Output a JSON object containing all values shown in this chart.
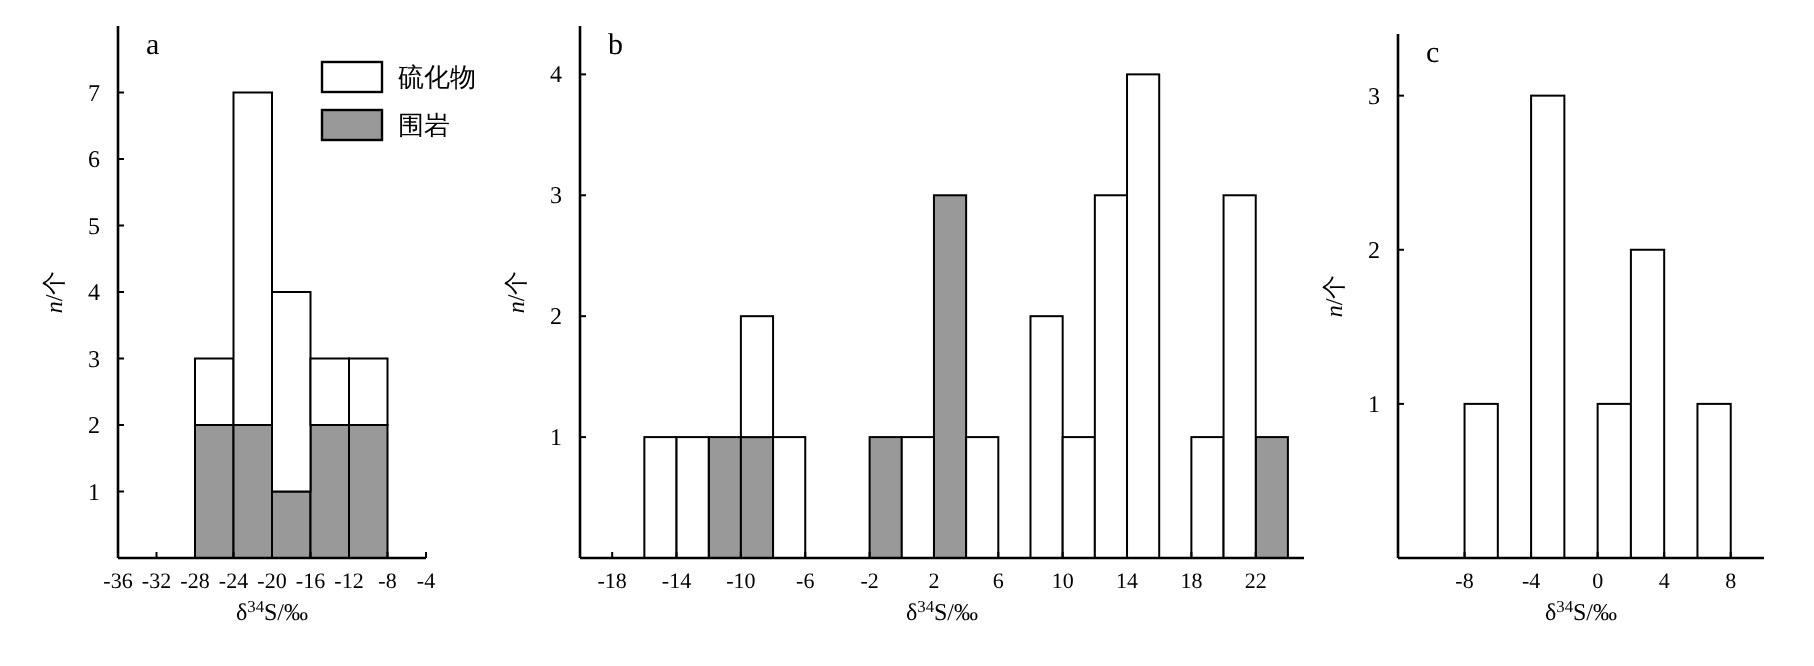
{
  "chart_data": [
    {
      "type": "bar",
      "title": "a",
      "xlabel": "δ$^{34}$S/‰",
      "ylabel": "*n*/个",
      "stacked": true,
      "legend": "top right",
      "grid": false,
      "x": [
        -26,
        -22,
        -18,
        -14,
        -10
      ],
      "series": [
        {
          "name": "围岩",
          "color": "#999999",
          "values": [
            2,
            2,
            1,
            2,
            2
          ]
        },
        {
          "name": "硫化物",
          "color": "#ffffff",
          "values": [
            1,
            5,
            3,
            1,
            1
          ]
        }
      ],
      "xlim": [
        -36,
        -4
      ],
      "xticks": [
        -36,
        -32,
        -28,
        -24,
        -20,
        -16,
        -12,
        -8,
        -4
      ],
      "ylim": [
        0,
        8
      ],
      "yticks": [
        1,
        2,
        3,
        4,
        5,
        6,
        7
      ]
    },
    {
      "type": "bar",
      "title": "b",
      "xlabel": "δ$^{34}$S/‰",
      "ylabel": "*n*/个",
      "stacked": true,
      "grid": false,
      "x": [
        -15,
        -13,
        -11,
        -9,
        -7,
        -5,
        -3,
        -1,
        1,
        3,
        5,
        7,
        9,
        11,
        13,
        15,
        17,
        19,
        21,
        23
      ],
      "series": [
        {
          "color": "#999999",
          "values": [
            0,
            0,
            1,
            1,
            0,
            0,
            0,
            1,
            0,
            3,
            0,
            0,
            0,
            0,
            0,
            0,
            0,
            0,
            0,
            1
          ]
        },
        {
          "color": "#ffffff",
          "values": [
            1,
            1,
            0,
            1,
            1,
            0,
            0,
            0,
            1,
            0,
            1,
            0,
            2,
            1,
            3,
            4,
            0,
            1,
            3,
            0
          ]
        }
      ],
      "xlim": [
        -20,
        25
      ],
      "xticks": [
        -18,
        -14,
        -10,
        -6,
        -2,
        2,
        6,
        10,
        14,
        18,
        22
      ],
      "ylim": [
        0,
        4.4
      ],
      "yticks": [
        1,
        2,
        3,
        4
      ]
    },
    {
      "type": "histogram",
      "title": "c",
      "xlabel": "δ$^{34}$S/‰",
      "ylabel": "*n*/个",
      "grid": false,
      "bins": [
        -8,
        -6,
        -4,
        -2,
        0,
        2,
        4,
        6,
        8
      ],
      "series": [
        {
          "color": "#ffffff",
          "values": [
            1,
            0,
            3,
            0,
            1,
            2,
            0,
            1
          ]
        }
      ],
      "xlim": [
        -12,
        10
      ],
      "xticks": [
        -8,
        -4,
        0,
        4,
        8
      ],
      "ylim": [
        0,
        3.4
      ],
      "yticks": [
        1,
        2,
        3
      ]
    }
  ]
}
